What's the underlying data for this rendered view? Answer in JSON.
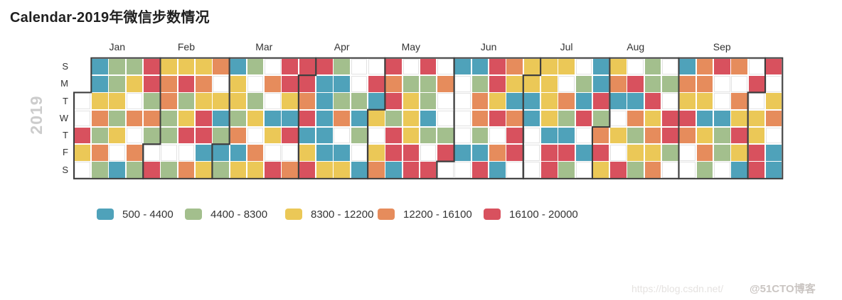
{
  "title": "Calendar-2019年微信步数情况",
  "year_label": "2019",
  "watermark": {
    "url": "https://blog.csdn.net/",
    "handle": "@51CTO博客"
  },
  "chart_data": {
    "type": "heatmap",
    "subtype": "calendar-heatmap",
    "title": "Calendar-2019年微信步数情况",
    "year": "2019",
    "day_labels": [
      "S",
      "M",
      "T",
      "W",
      "T",
      "F",
      "S"
    ],
    "row_order": "Sunday to Saturday, top to bottom; each week is one column",
    "palette": {
      "B": "#4FA2BA",
      "G": "#A3BF8D",
      "Y": "#EBC857",
      "O": "#E68C5C",
      "R": "#D8515E",
      "W": "#FFFFFF"
    },
    "legend": [
      {
        "label": "500 - 4400",
        "color": "#4FA2BA"
      },
      {
        "label": "4400 - 8300",
        "color": "#A3BF8D"
      },
      {
        "label": "8300 - 12200",
        "color": "#EBC857"
      },
      {
        "label": "12200 - 16100",
        "color": "#E68C5C"
      },
      {
        "label": "16100 - 20000",
        "color": "#D8515E"
      }
    ],
    "legend_position": "bottom-left",
    "months": [
      {
        "label": "Jan",
        "c1": 1,
        "r1": 3,
        "c2": 5,
        "r2": 5
      },
      {
        "label": "Feb",
        "c1": 5,
        "r1": 6,
        "c2": 9,
        "r2": 5
      },
      {
        "label": "Mar",
        "c1": 9,
        "r1": 6,
        "c2": 14,
        "r2": 1
      },
      {
        "label": "Apr",
        "c1": 14,
        "r1": 2,
        "c2": 18,
        "r2": 3
      },
      {
        "label": "May",
        "c1": 18,
        "r1": 4,
        "c2": 22,
        "r2": 6
      },
      {
        "label": "Jun",
        "c1": 22,
        "r1": 7,
        "c2": 27,
        "r2": 1
      },
      {
        "label": "Jul",
        "c1": 27,
        "r1": 2,
        "c2": 31,
        "r2": 4
      },
      {
        "label": "Aug",
        "c1": 31,
        "r1": 5,
        "c2": 35,
        "r2": 7
      },
      {
        "label": "Sep",
        "c1": 36,
        "r1": 1,
        "c2": 40,
        "r2": 2
      },
      {
        "label": "",
        "c1": 40,
        "r1": 3,
        "c2": 41,
        "r2": 7
      }
    ],
    "weeks": [
      "EEWWRYW",
      "BBYOGOG",
      "GGYGYWB",
      "GYWOWOG",
      "RRGOGWR",
      "YOOGGWG",
      "YRGYRWO",
      "YOYRRBY",
      "OWYBGBG",
      "BYYGOBY",
      "GWGYWOY",
      "WOWBYWR",
      "RRYBRWO",
      "RRORBYR",
      "RBBBBBY",
      "GBGOWBY",
      "WWGBGWB",
      "WRBYWYO",
      "RORGRRB",
      "WGYYYRR",
      "RGGBGWR",
      "WOWWGRW",
      "BWWWWBW",
      "BGOOGBR",
      "RRYRWOB",
      "OYBORRW",
      "YYBBWWW",
      "YYYYBRR",
      "YWOGBRG",
      "WGBRWBW",
      "BBRGORY",
      "YOBWYWR",
      "WRBOGYG",
      "GGRYOYO",
      "WGWRRGW",
      "BOYROWW",
      "OOYBYOG",
      "RWWBGGW",
      "OWOYRYB",
      "WRWYYRR",
      "RWYOWBB"
    ]
  }
}
